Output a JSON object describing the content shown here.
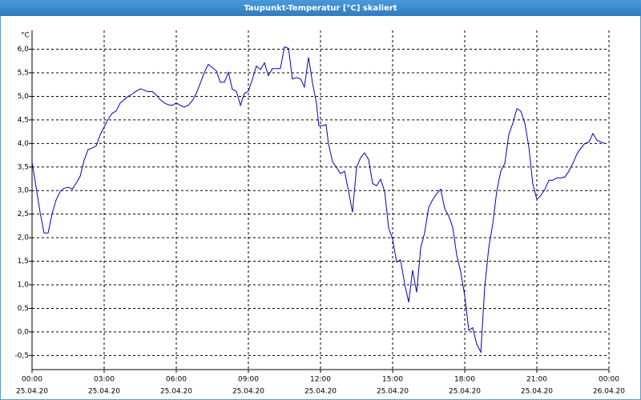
{
  "chart_data": {
    "type": "line",
    "title": "Taupunkt-Temperatur [°C] skaliert",
    "y_unit": "°C",
    "xlim": [
      0,
      24
    ],
    "xticks": [
      {
        "value": 0,
        "label": "00:00"
      },
      {
        "value": 3,
        "label": "03:00"
      },
      {
        "value": 6,
        "label": "06:00"
      },
      {
        "value": 9,
        "label": "09:00"
      },
      {
        "value": 12,
        "label": "12:00"
      },
      {
        "value": 15,
        "label": "15:00"
      },
      {
        "value": 18,
        "label": "18:00"
      },
      {
        "value": 21,
        "label": "21:00"
      },
      {
        "value": 24,
        "label": "00:00"
      }
    ],
    "xtick_dates": [
      "25.04.20",
      "25.04.20",
      "25.04.20",
      "25.04.20",
      "25.04.20",
      "25.04.20",
      "25.04.20",
      "25.04.20",
      "26.04.20"
    ],
    "ylim": [
      -0.8,
      6.4
    ],
    "yticks": [
      {
        "value": -0.5,
        "label": "-0,5"
      },
      {
        "value": 0,
        "label": "0,0"
      },
      {
        "value": 0.5,
        "label": "0,5"
      },
      {
        "value": 1,
        "label": "1,0"
      },
      {
        "value": 1.5,
        "label": "1,5"
      },
      {
        "value": 2,
        "label": "2,0"
      },
      {
        "value": 2.5,
        "label": "2,5"
      },
      {
        "value": 3,
        "label": "3,0"
      },
      {
        "value": 3.5,
        "label": "3,5"
      },
      {
        "value": 4,
        "label": "4,0"
      },
      {
        "value": 4.5,
        "label": "4,5"
      },
      {
        "value": 5,
        "label": "5,0"
      },
      {
        "value": 5.5,
        "label": "5,5"
      },
      {
        "value": 6,
        "label": "6,0"
      }
    ],
    "grid": true,
    "color": "#0000c8",
    "x": [
      0,
      0.17,
      0.33,
      0.5,
      0.67,
      0.83,
      1,
      1.17,
      1.33,
      1.5,
      1.67,
      1.83,
      2,
      2.17,
      2.33,
      2.5,
      2.67,
      2.83,
      3,
      3.17,
      3.33,
      3.5,
      3.67,
      3.83,
      4,
      4.17,
      4.33,
      4.5,
      4.67,
      4.83,
      5,
      5.17,
      5.33,
      5.5,
      5.67,
      5.83,
      6,
      6.17,
      6.33,
      6.5,
      6.67,
      6.83,
      7,
      7.17,
      7.33,
      7.5,
      7.67,
      7.83,
      8,
      8.17,
      8.33,
      8.5,
      8.67,
      8.83,
      9,
      9.17,
      9.33,
      9.5,
      9.67,
      9.83,
      10,
      10.17,
      10.33,
      10.5,
      10.67,
      10.83,
      11,
      11.17,
      11.33,
      11.5,
      11.67,
      11.83,
      11.93,
      12.1,
      12.23,
      12.33,
      12.5,
      12.67,
      12.83,
      13,
      13.17,
      13.33,
      13.5,
      13.67,
      13.83,
      14,
      14.17,
      14.33,
      14.5,
      14.67,
      14.83,
      15,
      15.17,
      15.33,
      15.5,
      15.67,
      15.83,
      16,
      16.17,
      16.33,
      16.5,
      16.67,
      16.83,
      17,
      17.17,
      17.33,
      17.5,
      17.67,
      17.83,
      18,
      18.17,
      18.33,
      18.5,
      18.67,
      18.83,
      19,
      19.17,
      19.33,
      19.5,
      19.67,
      19.83,
      20,
      20.17,
      20.33,
      20.5,
      20.67,
      20.83,
      21,
      21.17,
      21.33,
      21.5,
      21.67,
      21.83,
      22,
      22.17,
      22.33,
      22.5,
      22.67,
      22.83,
      23,
      23.17,
      23.33,
      23.5,
      23.67,
      23.83
    ],
    "values": [
      3.6,
      3.07,
      2.55,
      2.1,
      2.1,
      2.5,
      2.8,
      2.98,
      3.05,
      3.07,
      3.03,
      3.15,
      3.3,
      3.65,
      3.87,
      3.9,
      3.95,
      4.18,
      4.35,
      4.52,
      4.64,
      4.69,
      4.86,
      4.93,
      5.0,
      5.05,
      5.11,
      5.16,
      5.13,
      5.1,
      5.1,
      5.03,
      4.93,
      4.86,
      4.82,
      4.81,
      4.86,
      4.81,
      4.77,
      4.81,
      4.91,
      5.06,
      5.28,
      5.51,
      5.68,
      5.61,
      5.54,
      5.3,
      5.3,
      5.51,
      5.15,
      5.11,
      4.81,
      5.06,
      5.11,
      5.37,
      5.64,
      5.57,
      5.71,
      5.44,
      5.59,
      5.59,
      5.59,
      6.05,
      6.02,
      5.37,
      5.4,
      5.37,
      5.2,
      5.83,
      5.28,
      4.86,
      4.38,
      4.38,
      4.4,
      4.0,
      3.61,
      3.49,
      3.36,
      3.41,
      2.98,
      2.54,
      3.49,
      3.7,
      3.8,
      3.66,
      3.15,
      3.1,
      3.24,
      2.98,
      2.22,
      1.96,
      1.48,
      1.53,
      1.02,
      0.63,
      1.31,
      0.84,
      1.79,
      2.1,
      2.64,
      2.81,
      2.93,
      3.03,
      2.61,
      2.47,
      2.22,
      1.62,
      1.28,
      0.77,
      0.03,
      0.09,
      -0.26,
      -0.43,
      0.94,
      1.79,
      2.3,
      2.98,
      3.41,
      3.58,
      4.18,
      4.43,
      4.74,
      4.69,
      4.43,
      3.92,
      3.15,
      2.81,
      2.9,
      3.02,
      3.22,
      3.22,
      3.27,
      3.27,
      3.29,
      3.41,
      3.58,
      3.78,
      3.9,
      4.0,
      4.03,
      4.21,
      4.07,
      4.03,
      4.0
    ]
  }
}
